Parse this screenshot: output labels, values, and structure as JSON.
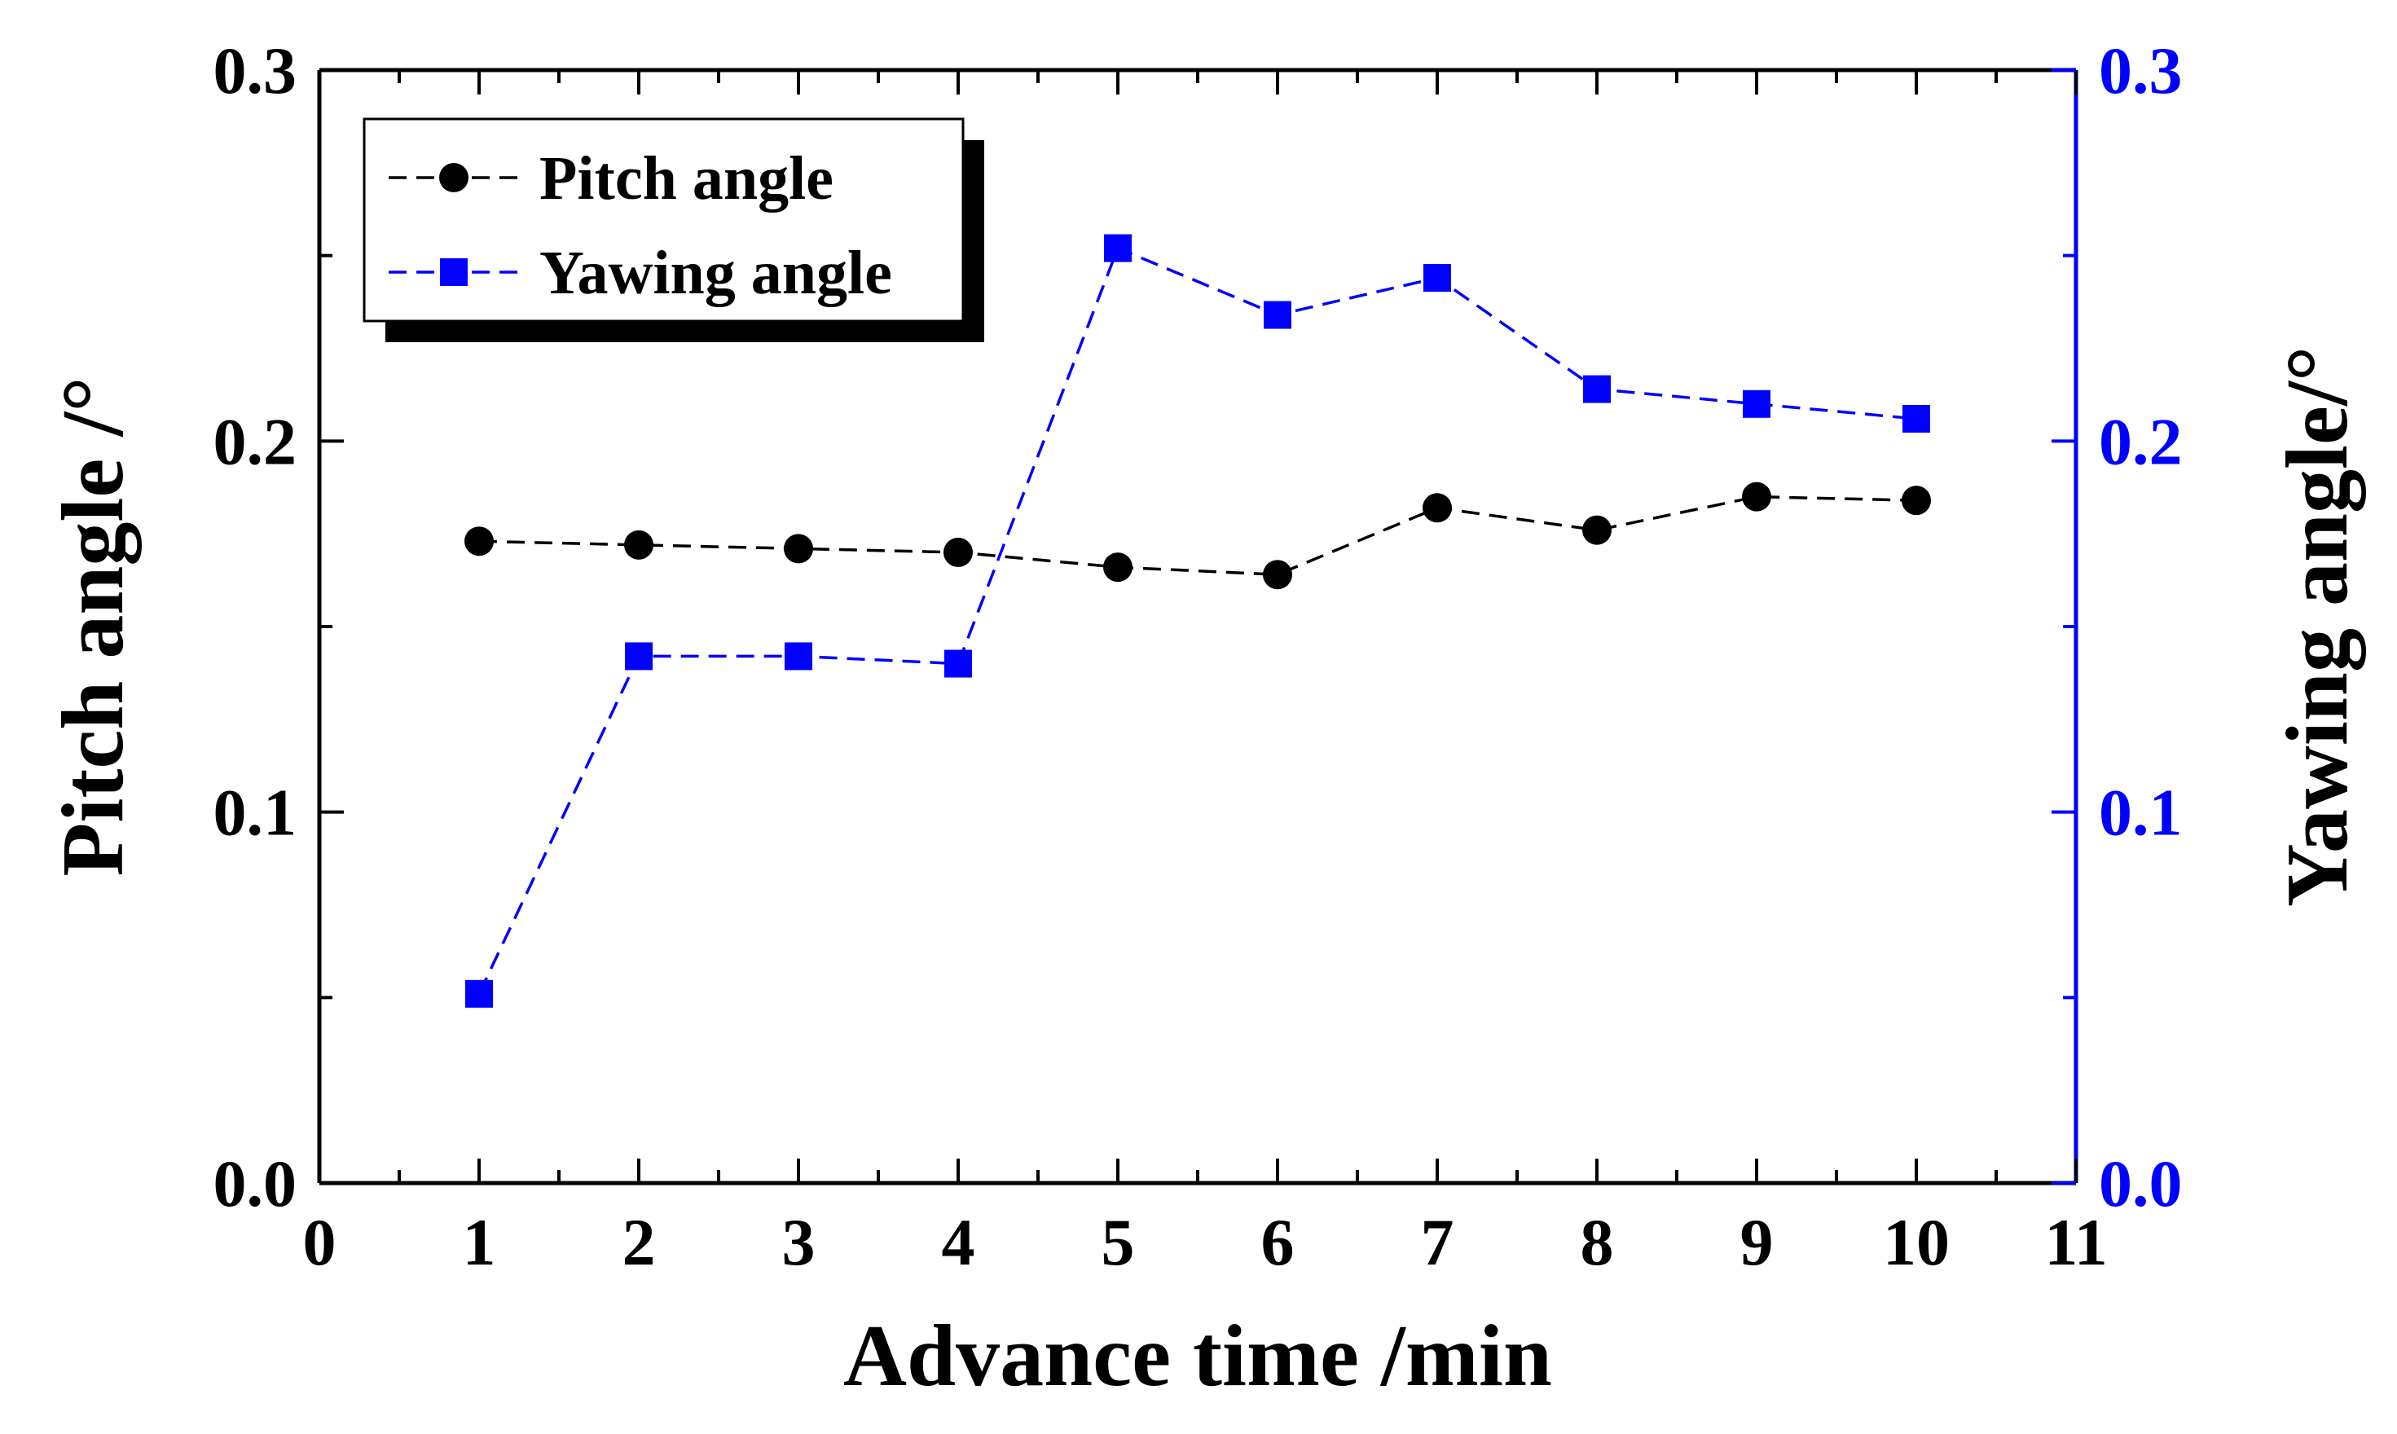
{
  "chart_data": {
    "type": "line",
    "xlabel": "Advance time /min",
    "ylabel_left": "Pitch angle /°",
    "ylabel_right": "Yawing angle/°",
    "xlim": [
      0,
      11
    ],
    "ylim_left": [
      0.0,
      0.3
    ],
    "ylim_right": [
      0.0,
      0.3
    ],
    "x_ticks": [
      "0",
      "1",
      "2",
      "3",
      "4",
      "5",
      "6",
      "7",
      "8",
      "9",
      "10",
      "11"
    ],
    "y_ticks_left": [
      "0.0",
      "0.1",
      "0.2",
      "0.3"
    ],
    "y_ticks_right": [
      "0.0",
      "0.1",
      "0.2",
      "0.3"
    ],
    "x": [
      1,
      2,
      3,
      4,
      5,
      6,
      7,
      8,
      9,
      10
    ],
    "legend_position": "top-left",
    "series": [
      {
        "name": "Pitch angle",
        "axis": "left",
        "marker": "circle",
        "line_style": "dashed",
        "color": "#000000",
        "values": [
          0.173,
          0.172,
          0.171,
          0.17,
          0.166,
          0.164,
          0.182,
          0.176,
          0.185,
          0.184
        ]
      },
      {
        "name": "Yawing angle",
        "axis": "right",
        "marker": "square",
        "line_style": "dashed",
        "color": "#0000ff",
        "values": [
          0.051,
          0.142,
          0.142,
          0.14,
          0.252,
          0.234,
          0.244,
          0.214,
          0.21,
          0.206
        ]
      }
    ]
  }
}
